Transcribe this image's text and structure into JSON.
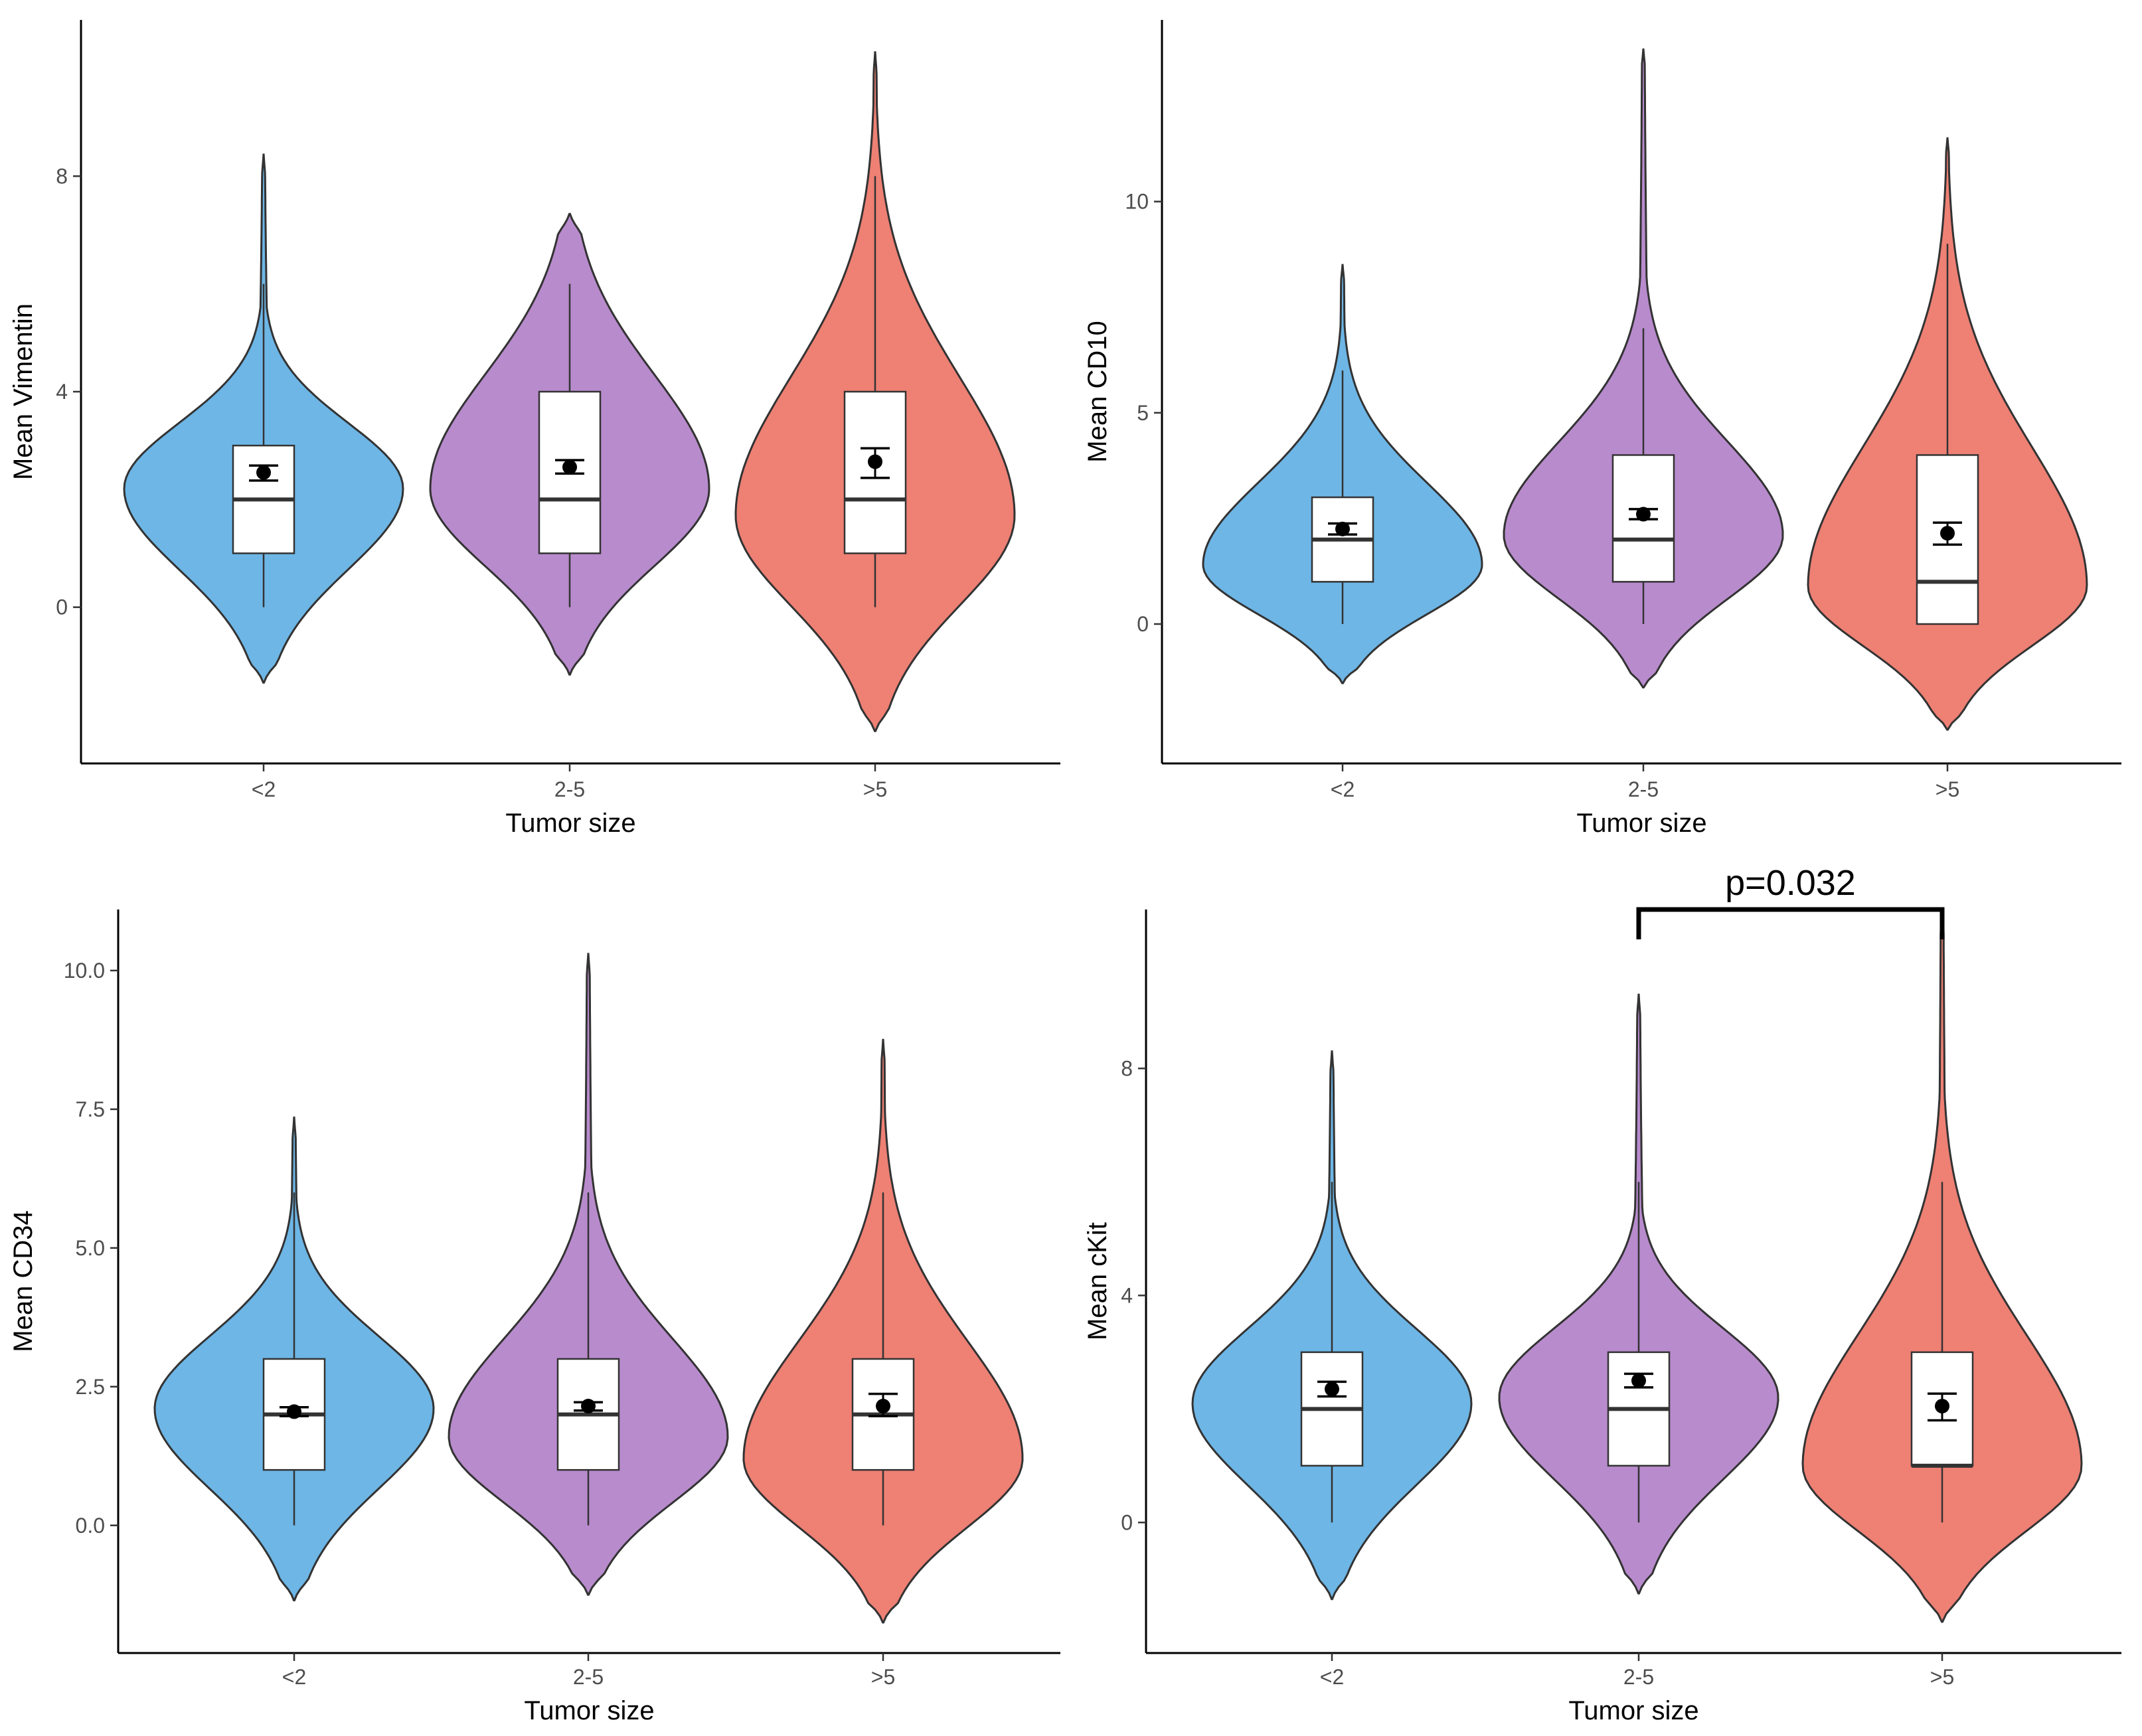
{
  "colors": {
    "lt2": "#6db6e6",
    "2to5": "#b88bcd",
    "gt5": "#ee8074",
    "outline": "#333333",
    "box_fill": "#ffffff"
  },
  "chart_data": [
    {
      "type": "violin",
      "xlabel": "Tumor size",
      "ylabel": "Mean Vimentin",
      "categories": [
        "<2",
        "2-5",
        ">5"
      ],
      "ylim": [
        -2.9,
        10.9
      ],
      "yticks": [
        0,
        4,
        8
      ],
      "ytick_labels": [
        "0",
        "4",
        "8"
      ],
      "groups": [
        {
          "category": "<2",
          "violin_min": -1.4,
          "violin_max": 8.4,
          "mode": 2.2,
          "whisker_low": 0,
          "q1": 1,
          "median": 2,
          "q3": 3,
          "whisker_high": 6,
          "mean": 2.5,
          "sem_low": 2.35,
          "sem_high": 2.63
        },
        {
          "category": "2-5",
          "violin_min": -1.25,
          "violin_max": 7.3,
          "mode": 2.2,
          "whisker_low": 0,
          "q1": 1,
          "median": 2,
          "q3": 4,
          "whisker_high": 6,
          "mean": 2.6,
          "sem_low": 2.48,
          "sem_high": 2.73
        },
        {
          "category": ">5",
          "violin_min": -2.3,
          "violin_max": 10.3,
          "mode": 1.7,
          "whisker_low": 0,
          "q1": 1,
          "median": 2,
          "q3": 4,
          "whisker_high": 8,
          "mean": 2.7,
          "sem_low": 2.4,
          "sem_high": 2.95
        }
      ]
    },
    {
      "type": "violin",
      "xlabel": "Tumor size",
      "ylabel": "Mean CD10",
      "categories": [
        "<2",
        "2-5",
        ">5"
      ],
      "ylim": [
        -3.3,
        14.3
      ],
      "yticks": [
        0,
        5,
        10
      ],
      "ytick_labels": [
        "0",
        "5",
        "10"
      ],
      "groups": [
        {
          "category": "<2",
          "violin_min": -1.4,
          "violin_max": 8.5,
          "mode": 1.4,
          "whisker_low": 0,
          "q1": 1,
          "median": 2,
          "q3": 3,
          "whisker_high": 6,
          "mean": 2.25,
          "sem_low": 2.12,
          "sem_high": 2.38
        },
        {
          "category": "2-5",
          "violin_min": -1.5,
          "violin_max": 13.6,
          "mode": 2.1,
          "whisker_low": 0,
          "q1": 1,
          "median": 2,
          "q3": 4,
          "whisker_high": 7,
          "mean": 2.6,
          "sem_low": 2.48,
          "sem_high": 2.72
        },
        {
          "category": ">5",
          "violin_min": -2.5,
          "violin_max": 11.5,
          "mode": 0.9,
          "whisker_low": 0,
          "q1": 0,
          "median": 1,
          "q3": 4,
          "whisker_high": 9,
          "mean": 2.15,
          "sem_low": 1.88,
          "sem_high": 2.4
        }
      ]
    },
    {
      "type": "violin",
      "xlabel": "Tumor size",
      "ylabel": "Mean CD34",
      "categories": [
        "<2",
        "2-5",
        ">5"
      ],
      "ylim": [
        -2.3,
        11.1
      ],
      "yticks": [
        0,
        2.5,
        5,
        7.5,
        10
      ],
      "ytick_labels": [
        "0.0",
        "2.5",
        "5.0",
        "7.5",
        "10.0"
      ],
      "groups": [
        {
          "category": "<2",
          "violin_min": -1.35,
          "violin_max": 7.35,
          "mode": 2.1,
          "whisker_low": 0,
          "q1": 1,
          "median": 2,
          "q3": 3,
          "whisker_high": 6,
          "mean": 2.05,
          "sem_low": 1.97,
          "sem_high": 2.13
        },
        {
          "category": "2-5",
          "violin_min": -1.25,
          "violin_max": 10.3,
          "mode": 1.6,
          "whisker_low": 0,
          "q1": 1,
          "median": 2,
          "q3": 3,
          "whisker_high": 6,
          "mean": 2.15,
          "sem_low": 2.07,
          "sem_high": 2.22
        },
        {
          "category": ">5",
          "violin_min": -1.75,
          "violin_max": 8.75,
          "mode": 1.2,
          "whisker_low": 0,
          "q1": 1,
          "median": 2,
          "q3": 3,
          "whisker_high": 6,
          "mean": 2.15,
          "sem_low": 1.97,
          "sem_high": 2.37
        }
      ]
    },
    {
      "type": "violin",
      "xlabel": "Tumor size",
      "ylabel": "Mean cKit",
      "categories": [
        "<2",
        "2-5",
        ">5"
      ],
      "ylim": [
        -2.3,
        10.8
      ],
      "yticks": [
        0,
        4,
        8
      ],
      "ytick_labels": [
        "0",
        "4",
        "8"
      ],
      "groups": [
        {
          "category": "<2",
          "violin_min": -1.35,
          "violin_max": 8.3,
          "mode": 2.1,
          "whisker_low": 0,
          "q1": 1,
          "median": 2,
          "q3": 3,
          "whisker_high": 6,
          "mean": 2.35,
          "sem_low": 2.22,
          "sem_high": 2.48
        },
        {
          "category": "2-5",
          "violin_min": -1.25,
          "violin_max": 9.3,
          "mode": 2.2,
          "whisker_low": 0,
          "q1": 1,
          "median": 2,
          "q3": 3,
          "whisker_high": 6,
          "mean": 2.5,
          "sem_low": 2.38,
          "sem_high": 2.62
        },
        {
          "category": ">5",
          "violin_min": -1.75,
          "violin_max": 10.8,
          "mode": 1.0,
          "whisker_low": 0,
          "q1": 1,
          "median": 1,
          "q3": 3,
          "whisker_high": 6,
          "mean": 2.05,
          "sem_low": 1.8,
          "sem_high": 2.27
        }
      ],
      "significance": {
        "from": "2-5",
        "to": ">5",
        "label": "p=0.032"
      }
    }
  ]
}
